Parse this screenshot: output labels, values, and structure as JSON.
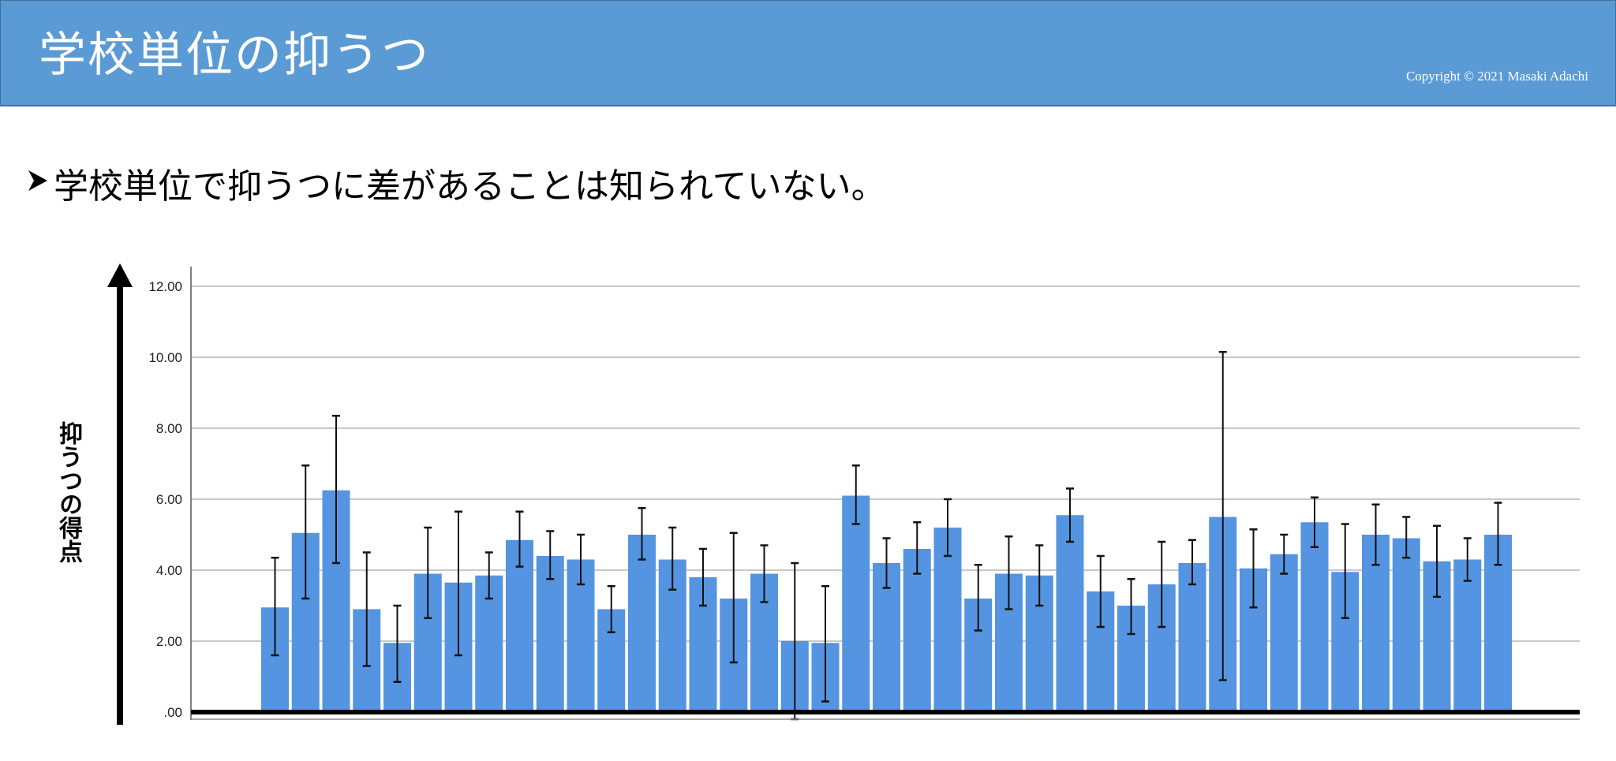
{
  "header": {
    "title": "学校単位の抑うつ",
    "copyright": "Copyright © 2021 Masaki Adachi",
    "background_color": "#5b9bd5"
  },
  "bullet": {
    "icon": "arrowhead-bullet-icon",
    "text": "学校単位で抑うつに差があることは知られていない。"
  },
  "y_axis_label": "抑うつの得点",
  "chart_data": {
    "type": "bar",
    "title": "",
    "xlabel": "",
    "ylabel": "抑うつの得点",
    "ylim": [
      0,
      12.6
    ],
    "yticks": [
      0,
      2,
      4,
      6,
      8,
      10,
      12
    ],
    "ytick_labels": [
      ".00",
      "2.00",
      "4.00",
      "6.00",
      "8.00",
      "10.00",
      "12.00"
    ],
    "grid": true,
    "bar_color": "#5594e0",
    "error_bars": true,
    "values": [
      2.95,
      5.05,
      6.25,
      2.9,
      1.95,
      3.9,
      3.65,
      3.85,
      4.85,
      4.4,
      4.3,
      2.9,
      5.0,
      4.3,
      3.8,
      3.2,
      3.9,
      2.0,
      1.95,
      6.1,
      4.2,
      4.6,
      5.2,
      3.2,
      3.9,
      3.85,
      5.55,
      3.4,
      3.0,
      3.6,
      4.2,
      5.5,
      4.05,
      4.45,
      5.35,
      3.95,
      5.0,
      4.9,
      4.25,
      4.3,
      5.0
    ],
    "error_low": [
      1.6,
      3.2,
      4.2,
      1.3,
      0.85,
      2.65,
      1.6,
      3.2,
      4.1,
      3.75,
      3.6,
      2.25,
      4.3,
      3.45,
      3.0,
      1.4,
      3.1,
      -0.2,
      0.3,
      5.3,
      3.5,
      3.9,
      4.4,
      2.3,
      2.9,
      3.0,
      4.8,
      2.4,
      2.2,
      2.4,
      3.6,
      0.9,
      2.95,
      3.9,
      4.65,
      2.65,
      4.15,
      4.35,
      3.25,
      3.7,
      4.15
    ],
    "error_high": [
      4.35,
      6.95,
      8.35,
      4.5,
      3.0,
      5.2,
      5.65,
      4.5,
      5.65,
      5.1,
      5.0,
      3.55,
      5.75,
      5.2,
      4.6,
      5.05,
      4.7,
      4.2,
      3.55,
      6.95,
      4.9,
      5.35,
      6.0,
      4.15,
      4.95,
      4.7,
      6.3,
      4.4,
      3.75,
      4.8,
      4.85,
      10.15,
      5.15,
      5.0,
      6.05,
      5.3,
      5.85,
      5.5,
      5.25,
      4.9,
      5.9
    ]
  }
}
